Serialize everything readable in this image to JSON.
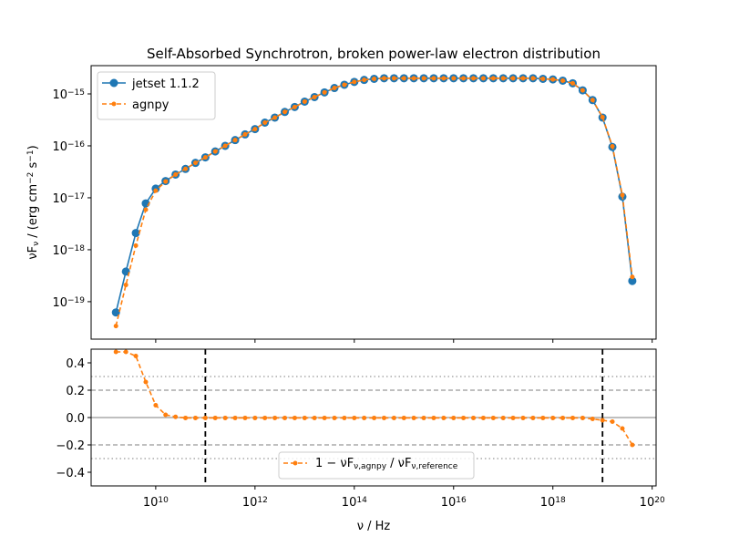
{
  "chart_data": [
    {
      "type": "line",
      "title": "Self-Absorbed Synchrotron, broken power-law electron distribution",
      "ylabel": [
        {
          "text": "νF"
        },
        {
          "text": "ν",
          "shift": "sub"
        },
        {
          "text": " / (erg cm"
        },
        {
          "text": "−2",
          "shift": "sup"
        },
        {
          "text": " s"
        },
        {
          "text": "−1",
          "shift": "sup"
        },
        {
          "text": ")"
        }
      ],
      "xscale": "log",
      "yscale": "log",
      "legend": "upper left",
      "xlim": [
        500000000.0,
        1.2e+20
      ],
      "ylim": [
        1.9e-20,
        3.5e-15
      ],
      "yticks": [
        {
          "value": 1e-15,
          "label": {
            "base": "10",
            "exponent": "−15"
          }
        },
        {
          "value": 1e-16,
          "label": {
            "base": "10",
            "exponent": "−16"
          }
        },
        {
          "value": 1e-17,
          "label": {
            "base": "10",
            "exponent": "−17"
          }
        },
        {
          "value": 1e-18,
          "label": {
            "base": "10",
            "exponent": "−18"
          }
        },
        {
          "value": 1e-19,
          "label": {
            "base": "10",
            "exponent": "−19"
          }
        }
      ],
      "x": [
        1580000000.0,
        2510000000.0,
        3980000000.0,
        6310000000.0,
        10000000000.0,
        15800000000.0,
        25100000000.0,
        39800000000.0,
        63100000000.0,
        100000000000.0,
        158000000000.0,
        251000000000.0,
        398000000000.0,
        631000000000.0,
        1000000000000.0,
        1580000000000.0,
        2510000000000.0,
        3980000000000.0,
        6310000000000.0,
        10000000000000.0,
        15800000000000.0,
        25100000000000.0,
        39800000000000.0,
        63100000000000.0,
        100000000000000.0,
        158000000000000.0,
        251000000000000.0,
        398000000000000.0,
        631000000000000.0,
        1000000000000000.0,
        1580000000000000.0,
        2510000000000000.0,
        3980000000000000.0,
        6310000000000000.0,
        1e+16,
        1.58e+16,
        2.51e+16,
        3.98e+16,
        6.31e+16,
        1e+17,
        1.58e+17,
        2.51e+17,
        3.98e+17,
        6.31e+17,
        1e+18,
        1.58e+18,
        2.51e+18,
        3.98e+18,
        6.31e+18,
        1e+19,
        1.58e+19,
        2.51e+19,
        3.98e+19
      ],
      "series": [
        {
          "name": "jetset 1.1.2",
          "color": "#1f77b4",
          "linestyle": "solid",
          "marker_radius": 4.5,
          "values": [
            6.2e-20,
            3.8e-19,
            2.1e-18,
            7.8e-18,
            1.5e-17,
            2.1e-17,
            2.8e-17,
            3.6e-17,
            4.7e-17,
            6e-17,
            7.8e-17,
            1e-16,
            1.29e-16,
            1.66e-16,
            2.1e-16,
            2.8e-16,
            3.5e-16,
            4.5e-16,
            5.6e-16,
            7.1e-16,
            8.7e-16,
            1.07e-15,
            1.3e-15,
            1.5e-15,
            1.7e-15,
            1.86e-15,
            1.95e-15,
            2e-15,
            2e-15,
            2e-15,
            2e-15,
            2e-15,
            2e-15,
            2e-15,
            2e-15,
            2e-15,
            2e-15,
            2e-15,
            2e-15,
            2e-15,
            2e-15,
            2e-15,
            2e-15,
            1.95e-15,
            1.9e-15,
            1.8e-15,
            1.6e-15,
            1.17e-15,
            7.6e-16,
            3.5e-16,
            9.5e-17,
            1.05e-17,
            2.5e-19
          ]
        },
        {
          "name": "agnpy",
          "color": "#ff7f0e",
          "linestyle": "dashed",
          "marker_radius": 2.5,
          "values": [
            3.4e-20,
            2.1e-19,
            1.2e-18,
            5.9e-18,
            1.37e-17,
            2.06e-17,
            2.8e-17,
            3.6e-17,
            4.7e-17,
            6e-17,
            7.8e-17,
            1e-16,
            1.29e-16,
            1.66e-16,
            2.1e-16,
            2.8e-16,
            3.5e-16,
            4.5e-16,
            5.6e-16,
            7.1e-16,
            8.7e-16,
            1.07e-15,
            1.3e-15,
            1.5e-15,
            1.7e-15,
            1.86e-15,
            1.95e-15,
            2e-15,
            2e-15,
            2e-15,
            2e-15,
            2e-15,
            2e-15,
            2e-15,
            2e-15,
            2e-15,
            2e-15,
            2e-15,
            2e-15,
            2e-15,
            2e-15,
            2e-15,
            2e-15,
            1.95e-15,
            1.9e-15,
            1.8e-15,
            1.6e-15,
            1.17e-15,
            7.6e-16,
            3.57e-16,
            9.8e-17,
            1.13e-17,
            3e-19
          ]
        }
      ]
    },
    {
      "type": "line",
      "xlabel": [
        {
          "text": "ν / Hz"
        }
      ],
      "xscale": "log",
      "legend": "lower center",
      "xlim": [
        500000000.0,
        1.2e+20
      ],
      "ylim": [
        -0.5,
        0.5
      ],
      "xticks": [
        {
          "value": 10000000000.0,
          "label": {
            "base": "10",
            "exponent": "10"
          }
        },
        {
          "value": 1000000000000.0,
          "label": {
            "base": "10",
            "exponent": "12"
          }
        },
        {
          "value": 100000000000000.0,
          "label": {
            "base": "10",
            "exponent": "14"
          }
        },
        {
          "value": 1e+16,
          "label": {
            "base": "10",
            "exponent": "16"
          }
        },
        {
          "value": 1e+18,
          "label": {
            "base": "10",
            "exponent": "18"
          }
        },
        {
          "value": 1e+20,
          "label": {
            "base": "10",
            "exponent": "20"
          }
        }
      ],
      "yticks": [
        0.4,
        0.2,
        {
          "value": 0,
          "label": "0.0"
        },
        {
          "value": -0.2,
          "label": "−0.2"
        },
        {
          "value": -0.4,
          "label": "−0.4"
        }
      ],
      "hlines": [
        {
          "y": 0,
          "style": "solid"
        },
        {
          "y": 0.2,
          "style": "dashed"
        },
        {
          "y": -0.2,
          "style": "dashed"
        },
        {
          "y": 0.3,
          "style": "dotted"
        },
        {
          "y": -0.3,
          "style": "dotted"
        }
      ],
      "vlines": [
        100000000000.0,
        1e+19
      ],
      "x": [
        1580000000.0,
        2510000000.0,
        3980000000.0,
        6310000000.0,
        10000000000.0,
        15800000000.0,
        25100000000.0,
        39800000000.0,
        63100000000.0,
        100000000000.0,
        158000000000.0,
        251000000000.0,
        398000000000.0,
        631000000000.0,
        1000000000000.0,
        1580000000000.0,
        2510000000000.0,
        3980000000000.0,
        6310000000000.0,
        10000000000000.0,
        15800000000000.0,
        25100000000000.0,
        39800000000000.0,
        63100000000000.0,
        100000000000000.0,
        158000000000000.0,
        251000000000000.0,
        398000000000000.0,
        631000000000000.0,
        1000000000000000.0,
        1580000000000000.0,
        2510000000000000.0,
        3980000000000000.0,
        6310000000000000.0,
        1e+16,
        1.58e+16,
        2.51e+16,
        3.98e+16,
        6.31e+16,
        1e+17,
        1.58e+17,
        2.51e+17,
        3.98e+17,
        6.31e+17,
        1e+18,
        1.58e+18,
        2.51e+18,
        3.98e+18,
        6.31e+18,
        1e+19,
        1.58e+19,
        2.51e+19,
        3.98e+19
      ],
      "series": [
        {
          "name": [
            {
              "text": "1 − νF"
            },
            {
              "text": "ν,agnpy",
              "shift": "sub"
            },
            {
              "text": " / νF"
            },
            {
              "text": "ν,reference",
              "shift": "sub"
            }
          ],
          "color": "#ff7f0e",
          "linestyle": "dashed",
          "marker_radius": 2.5,
          "values": [
            0.48,
            0.48,
            0.45,
            0.26,
            0.09,
            0.02,
            0.005,
            -0.003,
            -0.003,
            -0.003,
            -0.003,
            -0.003,
            -0.003,
            -0.003,
            -0.003,
            -0.003,
            -0.003,
            -0.003,
            -0.003,
            -0.003,
            -0.003,
            -0.003,
            -0.003,
            -0.003,
            -0.003,
            -0.003,
            -0.003,
            -0.003,
            -0.003,
            -0.003,
            -0.003,
            -0.003,
            -0.003,
            -0.003,
            -0.003,
            -0.003,
            -0.003,
            -0.003,
            -0.003,
            -0.003,
            -0.003,
            -0.003,
            -0.003,
            -0.003,
            -0.003,
            -0.003,
            -0.003,
            -0.003,
            -0.01,
            -0.02,
            -0.03,
            -0.08,
            -0.2
          ]
        }
      ]
    }
  ]
}
